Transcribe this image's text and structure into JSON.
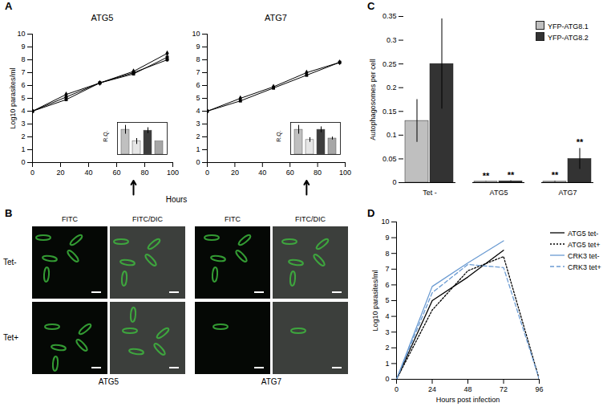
{
  "chart_data": [
    {
      "type": "line",
      "panel": "A",
      "title": "ATG5",
      "xlabel": "Hours",
      "ylabel": "Log10 parasites/ml",
      "x": [
        0,
        24,
        48,
        72,
        96
      ],
      "series": [
        {
          "color": "#000000",
          "marker": "diamond",
          "values": [
            4,
            5.3,
            6.2,
            7.1,
            8.5
          ]
        },
        {
          "color": "#000000",
          "marker": "square",
          "values": [
            4,
            4.9,
            6.2,
            6.9,
            8.2
          ]
        },
        {
          "color": "#000000",
          "marker": "circle",
          "values": [
            4,
            5.1,
            6.2,
            7.0,
            8.0
          ]
        }
      ],
      "xlim": [
        0,
        100
      ],
      "xticks": [
        0,
        20,
        40,
        60,
        80,
        100
      ],
      "ylim": [
        0,
        10
      ],
      "yticks": [
        0,
        1,
        2,
        3,
        4,
        5,
        6,
        7,
        8,
        9,
        10
      ],
      "arrow_x": 72,
      "inset": {
        "type": "bar",
        "ylabel": "R.Q.",
        "categories": [
          null,
          null,
          null,
          null
        ],
        "values": [
          0.85,
          0.45,
          0.82,
          0.45
        ],
        "errors": [
          0.15,
          0.1,
          0.1,
          0
        ],
        "colors": [
          "#c0c0c0",
          "#e6e6e6",
          "#3c3c3c",
          "#a6a6a6"
        ],
        "ylim": [
          0,
          1.1
        ],
        "tick_labels": false
      }
    },
    {
      "type": "line",
      "title": "ATG7",
      "x": [
        0,
        24,
        48,
        72,
        96
      ],
      "series": [
        {
          "color": "#000000",
          "marker": "diamond",
          "values": [
            4,
            5.0,
            5.9,
            7.0,
            7.8
          ]
        },
        {
          "color": "#000000",
          "marker": "square",
          "values": [
            4,
            4.8,
            5.8,
            6.8,
            7.8
          ]
        }
      ],
      "xlim": [
        0,
        100
      ],
      "xticks": [
        0,
        20,
        40,
        60,
        80,
        100
      ],
      "ylim": [
        0,
        10
      ],
      "yticks": [
        0,
        1,
        2,
        3,
        4,
        5,
        6,
        7,
        8,
        9,
        10
      ],
      "arrow_x": 72,
      "inset": {
        "type": "bar",
        "ylabel": "R.Q.",
        "categories": [
          null,
          null,
          null,
          null
        ],
        "values": [
          0.85,
          0.5,
          0.85,
          0.55
        ],
        "errors": [
          0.15,
          0.08,
          0.1,
          0.05
        ],
        "colors": [
          "#c0c0c0",
          "#e6e6e6",
          "#3c3c3c",
          "#a6a6a6"
        ],
        "ylim": [
          0,
          1.1
        ],
        "tick_labels": false
      }
    },
    {
      "type": "bar",
      "panel": "C",
      "ylabel": "Autophagosomes per cell",
      "categories": [
        "Tet -",
        "ATG5",
        "ATG7"
      ],
      "series": [
        {
          "name": "YFP-ATG8.1",
          "color": "#bfbfbf",
          "values": [
            0.13,
            0.002,
            0.002
          ],
          "errors": [
            0.045,
            0.0005,
            0.001
          ]
        },
        {
          "name": "YFP-ATG8.2",
          "color": "#333333",
          "values": [
            0.25,
            0.003,
            0.05
          ],
          "errors": [
            0.095,
            0.001,
            0.022
          ]
        }
      ],
      "ylim": [
        0,
        0.35
      ],
      "yticks": [
        0,
        0.05,
        0.1,
        0.15,
        0.2,
        0.25,
        0.3,
        0.35
      ],
      "legend": "top-right",
      "annotations": [
        {
          "text": "**",
          "category": "ATG5",
          "series": "YFP-ATG8.1"
        },
        {
          "text": "**",
          "category": "ATG5",
          "series": "YFP-ATG8.2"
        },
        {
          "text": "**",
          "category": "ATG7",
          "series": "YFP-ATG8.1"
        },
        {
          "text": "**",
          "category": "ATG7",
          "series": "YFP-ATG8.2"
        }
      ]
    },
    {
      "type": "line",
      "panel": "D",
      "xlabel": "Hours post infection",
      "ylabel": "Log10 parasites/ml",
      "x": [
        0,
        24,
        48,
        72,
        96
      ],
      "series": [
        {
          "name": "ATG5 tet-",
          "color": "#000000",
          "line_style": "solid",
          "values": [
            0,
            5.0,
            6.5,
            8.2,
            null
          ]
        },
        {
          "name": "ATG5 tet+",
          "color": "#000000",
          "line_style": "dotted",
          "values": [
            0,
            4.4,
            6.9,
            7.8,
            0
          ]
        },
        {
          "name": "CRK3 tet-",
          "color": "#6b9bd2",
          "line_style": "solid",
          "values": [
            0,
            5.9,
            7.4,
            8.8,
            null
          ]
        },
        {
          "name": "CRK3 tet+",
          "color": "#6b9bd2",
          "line_style": "dashed",
          "values": [
            0,
            5.5,
            7.3,
            7.1,
            0
          ]
        }
      ],
      "xlim": [
        0,
        96
      ],
      "xticks": [
        0,
        24,
        48,
        72,
        96
      ],
      "ylim": [
        0,
        10
      ],
      "yticks": [
        0,
        1,
        2,
        3,
        4,
        5,
        6,
        7,
        8,
        9,
        10
      ],
      "legend": "right"
    }
  ],
  "figure": {
    "panel": "B",
    "groups": [
      {
        "label": "ATG5",
        "columns": [
          "FITC",
          "FITC/DIC"
        ],
        "rows": [
          "Tet-",
          "Tet+"
        ]
      },
      {
        "label": "ATG7",
        "columns": [
          "FITC",
          "FITC/DIC"
        ]
      }
    ]
  }
}
